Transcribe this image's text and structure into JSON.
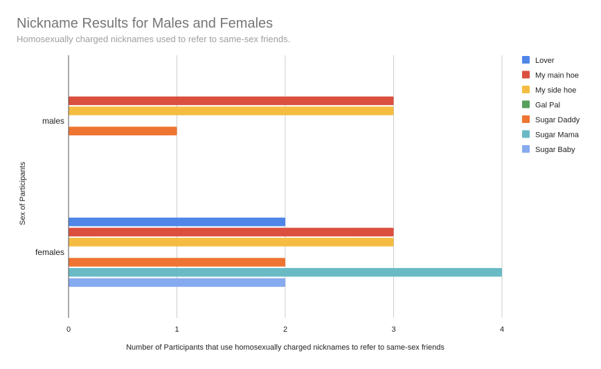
{
  "chart_data": {
    "type": "bar",
    "orientation": "horizontal",
    "title": "Nickname Results for Males and Females",
    "subtitle": "Homosexually charged nicknames used to refer to same-sex friends.",
    "xlabel": "Number of Participants that use homosexually charged nicknames to refer to same-sex friends",
    "ylabel": "Sex of Participants",
    "categories": [
      "males",
      "females"
    ],
    "xlim": [
      0,
      4
    ],
    "xticks": [
      "0",
      "1",
      "2",
      "3",
      "4"
    ],
    "grid": true,
    "legend_position": "right",
    "series": [
      {
        "name": "Lover",
        "color": "#4f86e8",
        "values": [
          0,
          2
        ]
      },
      {
        "name": "My main hoe",
        "color": "#db4f3f",
        "values": [
          3,
          3
        ]
      },
      {
        "name": "My side hoe",
        "color": "#f4bd42",
        "values": [
          3,
          3
        ]
      },
      {
        "name": "Gal Pal",
        "color": "#56a05b",
        "values": [
          0,
          0
        ]
      },
      {
        "name": "Sugar Daddy",
        "color": "#ee7431",
        "values": [
          1,
          2
        ]
      },
      {
        "name": "Sugar Mama",
        "color": "#69bac5",
        "values": [
          0,
          4
        ]
      },
      {
        "name": "Sugar Baby",
        "color": "#86aaf0",
        "values": [
          0,
          2
        ]
      }
    ]
  }
}
